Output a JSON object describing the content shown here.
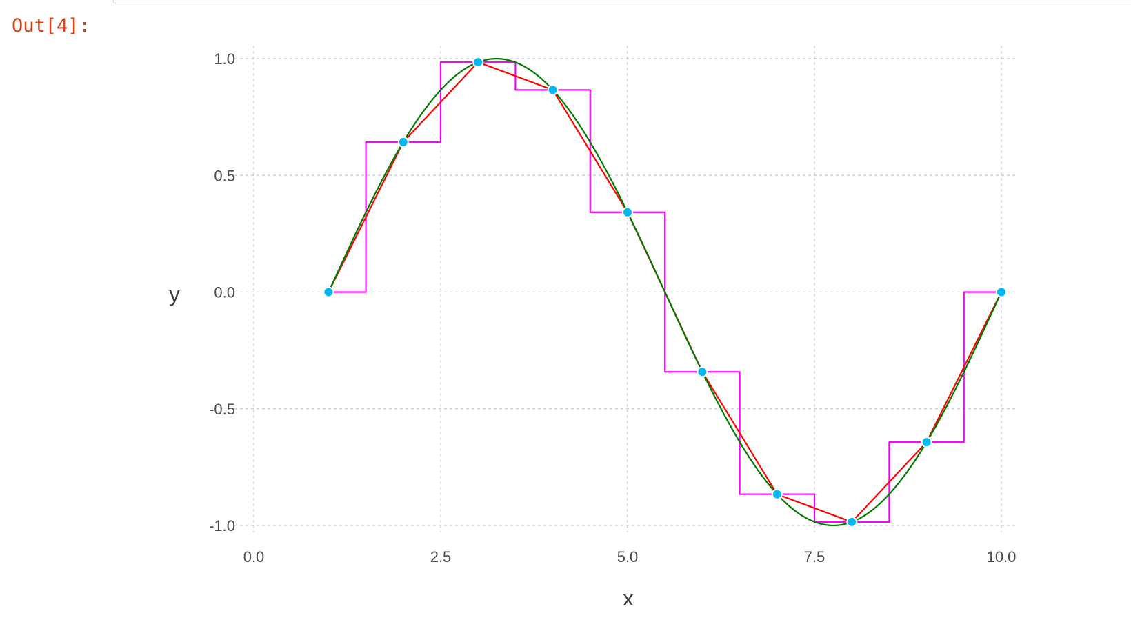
{
  "notebook": {
    "out_prompt": "Out[4]:"
  },
  "chart_data": {
    "type": "line",
    "title": "",
    "xlabel": "x",
    "ylabel": "y",
    "xlim": [
      0,
      10
    ],
    "ylim": [
      -1,
      1
    ],
    "x_ticks": [
      0,
      2.5,
      5,
      7.5,
      10
    ],
    "x_tick_labels": [
      "0.0",
      "2.5",
      "5.0",
      "7.5",
      "10.0"
    ],
    "y_ticks": [
      -1,
      -0.5,
      0,
      0.5,
      1
    ],
    "y_tick_labels": [
      "-1.0",
      "-0.5",
      "0.0",
      "0.5",
      "1.0"
    ],
    "grid": true,
    "legend": "none",
    "points": {
      "x": [
        1,
        2,
        3,
        4,
        5,
        6,
        7,
        8,
        9,
        10
      ],
      "y": [
        0,
        0.643,
        0.985,
        0.866,
        0.342,
        -0.342,
        -0.866,
        -0.985,
        -0.643,
        0
      ],
      "color": "#00b8f0"
    },
    "series": [
      {
        "kind": "step-nearest",
        "color": "#ff00ff",
        "x": [
          1,
          2,
          3,
          4,
          5,
          6,
          7,
          8,
          9,
          10
        ],
        "y": [
          0,
          0.643,
          0.985,
          0.866,
          0.342,
          -0.342,
          -0.866,
          -0.985,
          -0.643,
          0
        ]
      },
      {
        "kind": "linear",
        "color": "#ff0000",
        "x": [
          1,
          2,
          3,
          4,
          5,
          6,
          7,
          8,
          9,
          10
        ],
        "y": [
          0,
          0.643,
          0.985,
          0.866,
          0.342,
          -0.342,
          -0.866,
          -0.985,
          -0.643,
          0
        ]
      },
      {
        "kind": "smooth",
        "color": "#007a00",
        "x": [
          1,
          2,
          3,
          4,
          5,
          6,
          7,
          8,
          9,
          10
        ],
        "y": [
          0,
          0.643,
          0.985,
          0.866,
          0.342,
          -0.342,
          -0.866,
          -0.985,
          -0.643,
          0
        ]
      }
    ],
    "colors": {
      "grid": "#c8c8d8",
      "tick_text": "#4a4a4a",
      "point_outline": "#ffffff"
    }
  }
}
